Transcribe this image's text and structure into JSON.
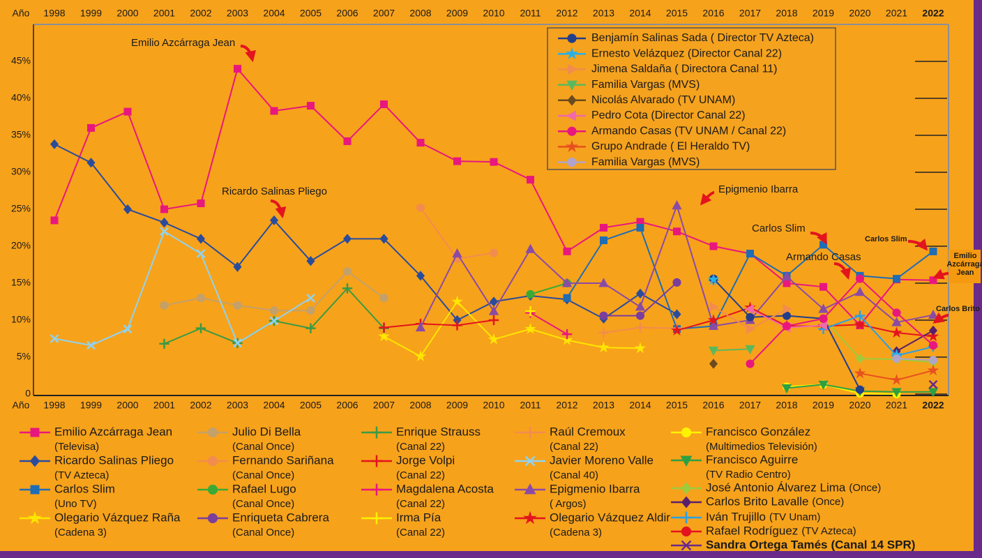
{
  "chart_data": {
    "type": "line",
    "xlabel": "Año",
    "categories": [
      "1998",
      "1999",
      "2000",
      "2001",
      "2002",
      "2003",
      "2004",
      "2005",
      "2006",
      "2007",
      "2008",
      "2009",
      "2010",
      "2011",
      "2012",
      "2013",
      "2014",
      "2015",
      "2016",
      "2017",
      "2018",
      "2019",
      "2020",
      "2021",
      "2022"
    ],
    "ylim": [
      0,
      50
    ],
    "yticks": [
      0,
      {
        "value": 5,
        "label": "5%"
      },
      {
        "value": 10,
        "label": "10%"
      },
      {
        "value": 15,
        "label": "15%"
      },
      {
        "value": 20,
        "label": "20%"
      },
      {
        "value": 25,
        "label": "25%"
      },
      {
        "value": 30,
        "label": "30%"
      },
      {
        "value": 35,
        "label": "35%"
      },
      {
        "value": 40,
        "label": "40%"
      },
      {
        "value": 45,
        "label": "45%"
      }
    ],
    "series": [
      {
        "name": "Emilio Azcárraga Jean",
        "org": "(Televisa)",
        "color": "#e8177d",
        "marker": "square",
        "values": [
          23.5,
          36,
          38.2,
          25,
          25.8,
          44,
          38.3,
          39,
          34.2,
          39.2,
          34,
          31.5,
          31.4,
          29,
          19.3,
          22.5,
          23.3,
          22,
          20,
          19,
          15,
          14.5,
          9.3,
          15.5,
          15.4
        ]
      },
      {
        "name": "Ricardo Salinas Pliego",
        "org": "(TV Azteca)",
        "color": "#2b4c9b",
        "marker": "diamond",
        "values": [
          33.8,
          31.3,
          25,
          23.2,
          21,
          17.2,
          23.5,
          18,
          21,
          21,
          16,
          10,
          12.5,
          13.3,
          12.8,
          10.2,
          13.6,
          10.8,
          null,
          null,
          null,
          null,
          null,
          null,
          null
        ]
      },
      {
        "name": "Carlos Slim",
        "org": "(Uno TV)",
        "color": "#1f6db5",
        "marker": "square",
        "values": [
          null,
          null,
          null,
          null,
          null,
          null,
          null,
          null,
          null,
          null,
          null,
          null,
          null,
          null,
          13,
          20.8,
          22.5,
          8.8,
          9.2,
          19,
          16,
          20.2,
          16,
          15.6,
          19.3
        ]
      },
      {
        "name": "Olegario Vázquez Raña",
        "org": "(Cadena 3)",
        "color": "#ffe600",
        "marker": "star",
        "values": [
          null,
          null,
          null,
          null,
          null,
          null,
          null,
          null,
          null,
          7.8,
          5.1,
          12.5,
          7.4,
          8.8,
          7.3,
          6.3,
          6.2,
          null,
          null,
          null,
          null,
          null,
          null,
          null,
          null
        ]
      },
      {
        "name": "Julio Di Bella",
        "org": "(Canal Once)",
        "color": "#c4a06a",
        "marker": "circle",
        "values": [
          null,
          null,
          null,
          12,
          13,
          12,
          11.3,
          11.3,
          16.6,
          13,
          null,
          null,
          null,
          null,
          null,
          null,
          null,
          null,
          null,
          null,
          null,
          null,
          null,
          null,
          null
        ]
      },
      {
        "name": "Fernando Sariñana",
        "org": "(Canal Once)",
        "color": "#f28c4e",
        "marker": "circle",
        "values": [
          null,
          null,
          null,
          null,
          null,
          null,
          null,
          null,
          null,
          null,
          25.2,
          18.3,
          19.1,
          null,
          null,
          null,
          null,
          null,
          null,
          null,
          null,
          null,
          null,
          null,
          null
        ]
      },
      {
        "name": "Rafael Lugo",
        "org": "(Canal Once)",
        "color": "#3aaa35",
        "marker": "circle",
        "values": [
          null,
          null,
          null,
          null,
          null,
          null,
          null,
          null,
          null,
          null,
          null,
          null,
          null,
          13.5,
          15,
          null,
          null,
          null,
          null,
          null,
          null,
          null,
          null,
          null,
          null
        ]
      },
      {
        "name": "Enriqueta Cabrera",
        "org": "(Canal Once)",
        "color": "#7a3e9d",
        "marker": "circle",
        "values": [
          null,
          null,
          null,
          null,
          null,
          null,
          null,
          null,
          null,
          null,
          null,
          null,
          null,
          null,
          null,
          10.6,
          10.6,
          15.1,
          null,
          null,
          null,
          null,
          null,
          null,
          null
        ]
      },
      {
        "name": "Enrique Strauss",
        "org": "(Canal 22)",
        "color": "#3a9a44",
        "marker": "plus",
        "values": [
          null,
          null,
          null,
          6.8,
          8.9,
          6.9,
          9.9,
          8.9,
          14.3,
          8.9,
          null,
          null,
          null,
          null,
          null,
          null,
          null,
          null,
          null,
          null,
          null,
          null,
          null,
          null,
          null
        ]
      },
      {
        "name": "Jorge Volpi",
        "org": "(Canal 22)",
        "color": "#e3141d",
        "marker": "plus",
        "values": [
          null,
          null,
          null,
          null,
          null,
          null,
          null,
          null,
          null,
          9,
          9.5,
          9.3,
          10,
          null,
          null,
          null,
          null,
          null,
          null,
          null,
          null,
          null,
          null,
          null,
          null
        ]
      },
      {
        "name": "Magdalena Acosta",
        "org": "(Canal 22)",
        "color": "#e8177d",
        "marker": "plus",
        "values": [
          null,
          null,
          null,
          null,
          null,
          null,
          null,
          null,
          null,
          null,
          null,
          null,
          null,
          11,
          8.1,
          null,
          null,
          null,
          null,
          null,
          null,
          null,
          null,
          null,
          null
        ]
      },
      {
        "name": "Irma Pía",
        "org": "(Canal 22)",
        "color": "#fff200",
        "marker": "plus",
        "values": [
          null,
          null,
          null,
          null,
          null,
          null,
          null,
          null,
          null,
          null,
          null,
          null,
          null,
          11.2,
          null,
          null,
          null,
          null,
          null,
          null,
          null,
          null,
          null,
          null,
          null
        ]
      },
      {
        "name": "Raúl Cremoux",
        "org": "(Canal 22)",
        "color": "#f28c4e",
        "marker": "plus",
        "values": [
          null,
          null,
          null,
          null,
          null,
          null,
          null,
          null,
          null,
          null,
          null,
          null,
          null,
          null,
          null,
          8.3,
          9,
          8.9,
          null,
          null,
          null,
          null,
          null,
          null,
          null
        ]
      },
      {
        "name": "Javier Moreno Valle",
        "org": "(Canal 40)",
        "color": "#8fd3f0",
        "marker": "x",
        "values": [
          7.5,
          6.6,
          8.8,
          22,
          19,
          6.9,
          9.9,
          13,
          null,
          null,
          null,
          null,
          null,
          null,
          null,
          null,
          null,
          null,
          null,
          null,
          null,
          null,
          null,
          null,
          null
        ]
      },
      {
        "name": "Epigmenio Ibarra",
        "org": "( Argos)",
        "color": "#8a4ba5",
        "marker": "triangle",
        "values": [
          null,
          null,
          null,
          null,
          null,
          null,
          null,
          null,
          null,
          null,
          9,
          19,
          11.2,
          19.6,
          15,
          15,
          11.8,
          25.5,
          9.2,
          10,
          15.9,
          11.5,
          13.8,
          9.7,
          10.7
        ]
      },
      {
        "name": "Olegario Vázquez Aldir",
        "org": "(Cadena 3)",
        "color": "#e3141d",
        "marker": "star",
        "values": [
          null,
          null,
          null,
          null,
          null,
          null,
          null,
          null,
          null,
          null,
          null,
          null,
          null,
          null,
          null,
          null,
          null,
          8.6,
          10,
          11.7,
          9.2,
          9.2,
          9.4,
          8.3,
          7.8
        ]
      },
      {
        "name": "Francisco González",
        "org": "(Multimedios Televisión)",
        "color": "#fff200",
        "marker": "circle",
        "values": [
          null,
          null,
          null,
          null,
          null,
          null,
          null,
          null,
          null,
          null,
          null,
          null,
          null,
          null,
          null,
          null,
          null,
          null,
          null,
          null,
          1,
          1.3,
          0.1,
          0,
          null
        ]
      },
      {
        "name": "Francisco Aguirre",
        "org": "(TV Radio Centro)",
        "color": "#2ea043",
        "marker": "tridown",
        "values": [
          null,
          null,
          null,
          null,
          null,
          null,
          null,
          null,
          null,
          null,
          null,
          null,
          null,
          null,
          null,
          null,
          null,
          null,
          null,
          null,
          0.8,
          1.3,
          0.4,
          0.3,
          0.3
        ]
      },
      {
        "name": "José Antonio Álvarez Lima",
        "org": "(Once)",
        "color": "#9ccc3c",
        "marker": "diamond",
        "values": [
          null,
          null,
          null,
          null,
          null,
          null,
          null,
          null,
          null,
          null,
          null,
          null,
          null,
          null,
          null,
          null,
          null,
          null,
          null,
          null,
          null,
          10.2,
          4.8,
          4.7,
          4.3
        ]
      },
      {
        "name": "Carlos Brito Lavalle",
        "org": "(Once)",
        "color": "#5a1f6b",
        "marker": "diamond",
        "values": [
          null,
          null,
          null,
          null,
          null,
          null,
          null,
          null,
          null,
          null,
          null,
          null,
          null,
          null,
          null,
          null,
          null,
          null,
          null,
          null,
          null,
          null,
          null,
          5.8,
          8.6
        ]
      },
      {
        "name": "Iván Trujillo",
        "org": "(TV Unam)",
        "color": "#2aa0e8",
        "marker": "plus",
        "values": [
          null,
          null,
          null,
          null,
          null,
          null,
          null,
          null,
          null,
          null,
          null,
          null,
          null,
          null,
          null,
          null,
          null,
          null,
          15.4,
          null,
          null,
          8.8,
          10.6,
          5.2,
          6.4
        ]
      },
      {
        "name": "Rafael Rodríguez",
        "org": "(TV Azteca)",
        "color": "#e3141d",
        "marker": "circle",
        "values": [
          null,
          null,
          null,
          null,
          null,
          null,
          null,
          null,
          null,
          null,
          null,
          null,
          null,
          null,
          null,
          null,
          null,
          null,
          null,
          null,
          null,
          null,
          null,
          null,
          6.6
        ]
      },
      {
        "name": "Sandra Ortega Tamés",
        "org": "(Canal 14 SPR)",
        "color": "#6a2a8a",
        "marker": "x",
        "values": [
          null,
          null,
          null,
          null,
          null,
          null,
          null,
          null,
          null,
          null,
          null,
          null,
          null,
          null,
          null,
          null,
          null,
          null,
          null,
          null,
          null,
          null,
          null,
          null,
          1.3
        ]
      }
    ],
    "inset_series": [
      {
        "name": "Benjamín Salinas Sada ( Director TV Azteca)",
        "color": "#233e8b",
        "marker": "circle",
        "values": [
          null,
          null,
          null,
          null,
          null,
          null,
          null,
          null,
          null,
          null,
          null,
          null,
          null,
          null,
          null,
          null,
          null,
          null,
          15.6,
          10.4,
          10.6,
          10.2,
          0.6,
          null,
          null
        ]
      },
      {
        "name": "Ernesto Velázquez (Director Canal 22)",
        "color": "#27b0e6",
        "marker": "star",
        "values": [
          null,
          null,
          null,
          null,
          null,
          null,
          null,
          null,
          null,
          null,
          null,
          null,
          null,
          null,
          null,
          null,
          null,
          null,
          15.5,
          null,
          null,
          null,
          null,
          5.3,
          null
        ]
      },
      {
        "name": "Jimena Saldaña ( Directora Canal 11)",
        "color": "#f28c4e",
        "marker": "triright",
        "values": [
          null,
          null,
          null,
          null,
          null,
          null,
          null,
          null,
          null,
          null,
          null,
          null,
          null,
          null,
          null,
          null,
          null,
          null,
          11.8,
          8.8,
          11.5,
          null,
          null,
          null,
          null
        ]
      },
      {
        "name": "Familia Vargas (MVS)",
        "color": "#5cb85c",
        "marker": "tridown",
        "values": [
          null,
          null,
          null,
          null,
          null,
          null,
          null,
          null,
          null,
          null,
          null,
          null,
          null,
          null,
          null,
          null,
          null,
          null,
          5.9,
          6.1,
          null,
          null,
          null,
          null,
          null
        ]
      },
      {
        "name": "Nicolás Alvarado (TV UNAM)",
        "color": "#6b4a1e",
        "marker": "diamond",
        "values": [
          null,
          null,
          null,
          null,
          null,
          null,
          null,
          null,
          null,
          null,
          null,
          null,
          null,
          null,
          null,
          null,
          null,
          null,
          4.1,
          null,
          null,
          null,
          null,
          null,
          null
        ]
      },
      {
        "name": "Pedro Cota (Director Canal 22)",
        "color": "#f06aa8",
        "marker": "trileft",
        "values": [
          null,
          null,
          null,
          null,
          null,
          null,
          null,
          null,
          null,
          null,
          null,
          null,
          null,
          null,
          null,
          null,
          null,
          null,
          null,
          11.5,
          9,
          9.3,
          null,
          null,
          null
        ]
      },
      {
        "name": "Armando Casas (TV UNAM / Canal 22)",
        "color": "#e8177d",
        "marker": "circle",
        "values": [
          null,
          null,
          null,
          null,
          null,
          null,
          null,
          null,
          null,
          null,
          null,
          null,
          null,
          null,
          null,
          null,
          null,
          null,
          null,
          4.1,
          9.2,
          10.2,
          15.6,
          11,
          6.6
        ]
      },
      {
        "name": "Grupo Andrade ( El Heraldo TV)",
        "color": "#e8501e",
        "marker": "star",
        "values": [
          null,
          null,
          null,
          null,
          null,
          null,
          null,
          null,
          null,
          null,
          null,
          null,
          null,
          null,
          null,
          null,
          null,
          null,
          null,
          null,
          null,
          null,
          2.8,
          1.9,
          3.2
        ]
      },
      {
        "name": "Familia Vargas (MVS)",
        "color": "#b0a4c8",
        "marker": "circle",
        "values": [
          null,
          null,
          null,
          null,
          null,
          null,
          null,
          null,
          null,
          null,
          null,
          null,
          null,
          null,
          null,
          null,
          null,
          null,
          null,
          null,
          null,
          null,
          null,
          4.8,
          4.6
        ]
      }
    ],
    "annotations": [
      {
        "lines": [
          "Emilio Azcárraga Jean"
        ]
      },
      {
        "lines": [
          "Ricardo Salinas Pliego"
        ]
      },
      {
        "lines": [
          "Epigmenio Ibarra"
        ]
      },
      {
        "lines": [
          "Carlos Slim"
        ]
      },
      {
        "lines": [
          "Armando Casas"
        ]
      },
      {
        "lines": [
          "Carlos Slim"
        ]
      },
      {
        "lines": [
          "Emilio",
          "Azcárraga",
          "Jean"
        ]
      },
      {
        "lines": [
          "Carlos Brito"
        ]
      }
    ]
  }
}
